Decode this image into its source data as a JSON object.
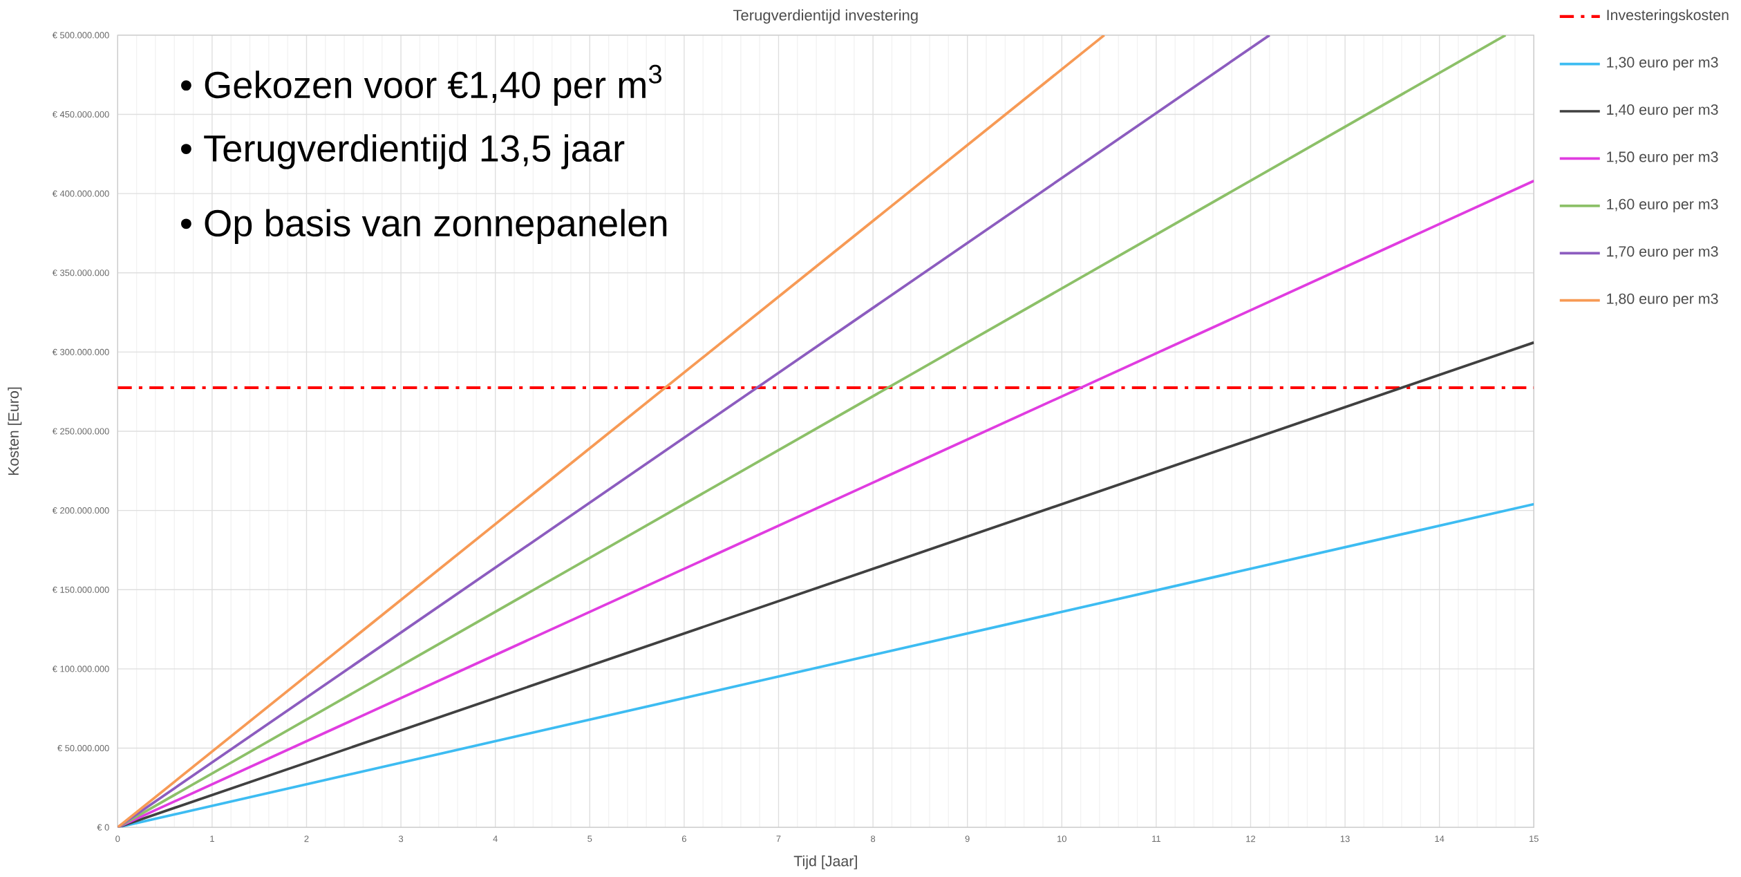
{
  "chart_data": {
    "type": "line",
    "title": "Terugverdientijd investering",
    "xlabel": "Tijd [Jaar]",
    "ylabel": "Kosten [Euro]",
    "series": [
      {
        "name": "1,30 euro per m3",
        "color": "#3dbcf2",
        "x": [
          0,
          15
        ],
        "values": [
          0,
          204000000
        ]
      },
      {
        "name": "1,40 euro per m3",
        "color": "#404040",
        "x": [
          0,
          15
        ],
        "values": [
          0,
          306000000
        ]
      },
      {
        "name": "1,50 euro per m3",
        "color": "#e03ce0",
        "x": [
          0,
          15
        ],
        "values": [
          0,
          408000000
        ]
      },
      {
        "name": "1,60 euro per m3",
        "color": "#8cc068",
        "x": [
          0,
          14.7
        ],
        "values": [
          0,
          500000000
        ]
      },
      {
        "name": "1,70 euro per m3",
        "color": "#8c5cbf",
        "x": [
          0,
          12.2
        ],
        "values": [
          0,
          500000000
        ]
      },
      {
        "name": "1,80 euro per m3",
        "color": "#f79a55",
        "x": [
          0,
          10.45
        ],
        "values": [
          0,
          500000000
        ]
      }
    ],
    "ref_lines": [
      {
        "axis": "y",
        "value": 277500000,
        "label": "Investeringskosten",
        "color": "#ff0000",
        "line_style": "dashdot"
      }
    ],
    "xlim": [
      0,
      15
    ],
    "ylim": [
      0,
      500000000
    ],
    "xticks": [
      0,
      1,
      2,
      3,
      4,
      5,
      6,
      7,
      8,
      9,
      10,
      11,
      12,
      13,
      14,
      15
    ],
    "yticks": [
      {
        "value": 0,
        "label": "€ 0"
      },
      {
        "value": 50000000,
        "label": "€ 50.000.000"
      },
      {
        "value": 100000000,
        "label": "€ 100.000.000"
      },
      {
        "value": 150000000,
        "label": "€ 150.000.000"
      },
      {
        "value": 200000000,
        "label": "€ 200.000.000"
      },
      {
        "value": 250000000,
        "label": "€ 250.000.000"
      },
      {
        "value": 300000000,
        "label": "€ 300.000.000"
      },
      {
        "value": 350000000,
        "label": "€ 350.000.000"
      },
      {
        "value": 400000000,
        "label": "€ 400.000.000"
      },
      {
        "value": 450000000,
        "label": "€ 450.000.000"
      },
      {
        "value": 500000000,
        "label": "€ 500.000.000"
      }
    ],
    "grid": true,
    "legend": "right",
    "line_style": "solid",
    "marker": "none",
    "annotations": [
      "• Gekozen voor €1,40 per m$^{3}$",
      "• Terugverdientijd 13,5 jaar",
      "• Op basis van zonnepanelen"
    ]
  }
}
